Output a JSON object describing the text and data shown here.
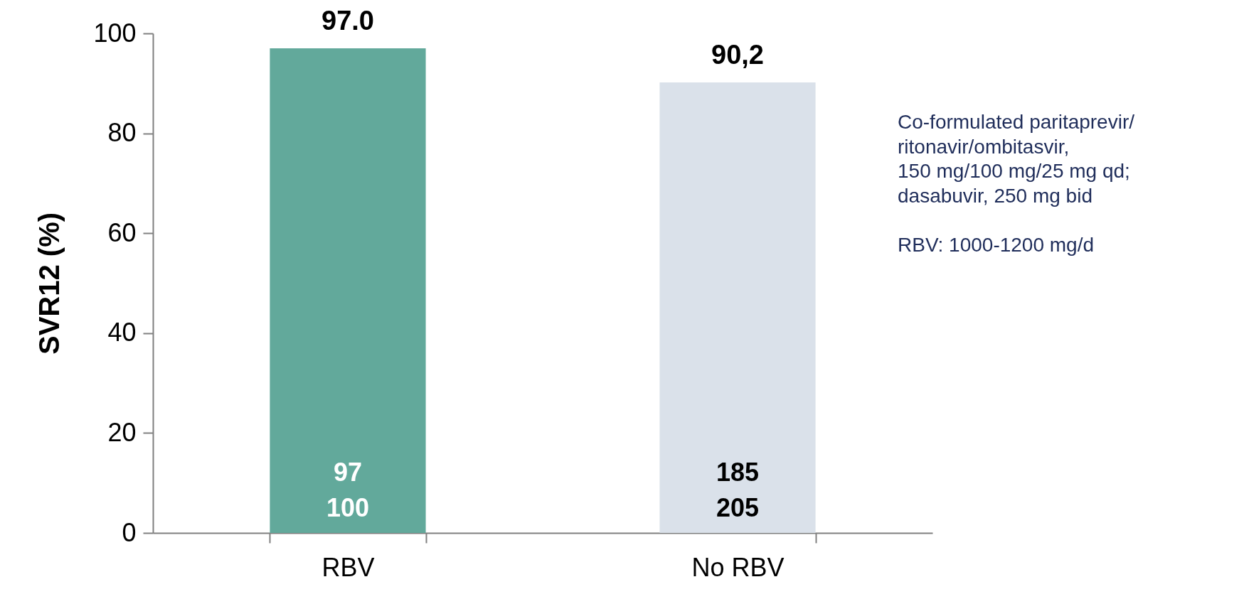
{
  "chart_data": {
    "type": "bar",
    "ylabel": "SVR12 (%)",
    "categories": [
      "RBV",
      "No RBV"
    ],
    "values": [
      97.0,
      90.2
    ],
    "colors": [
      "#62a99b",
      "#dae1ea"
    ],
    "value_labels": [
      "97.0",
      "90,2"
    ],
    "ylim": [
      0,
      100
    ],
    "yticks": [
      0,
      20,
      40,
      60,
      80,
      100
    ],
    "grid": false,
    "annotations": [
      "97",
      "100",
      "185",
      "205",
      "Co-formulated paritaprevir/\nritonavir/ombitasvir,\n150 mg/100 mg/25 mg qd;\ndasabuvir, 250 mg bid",
      "RBV: 1000-1200 mg/d"
    ]
  }
}
